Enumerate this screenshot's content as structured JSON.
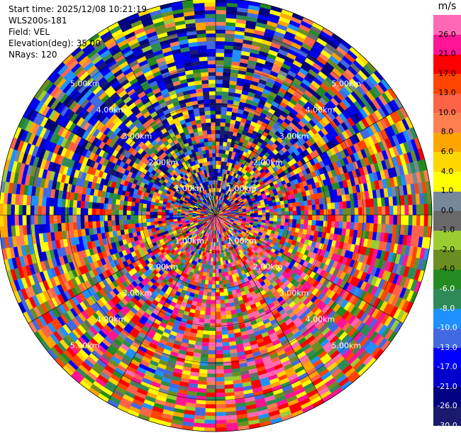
{
  "header": {
    "start_time": "Start time: 2025/12/08 10:21:19",
    "instrument": "WLS200s-181",
    "field": "Field: VEL",
    "elevation": "Elevation(deg): 35.00",
    "nrays": "NRays: 120"
  },
  "chart_data": {
    "type": "ppi",
    "title": "",
    "field": "VEL",
    "elevation_deg": 35.0,
    "n_rays": 120,
    "range_rings_km": [
      1.0,
      2.0,
      3.0,
      4.0,
      5.0
    ],
    "range_ring_labels": [
      "1.00km",
      "2.00km",
      "3.00km",
      "4.00km",
      "5.00km"
    ],
    "max_range_km": 5.85,
    "grid_lines": "radials every 30 degrees",
    "colorbar": {
      "unit": "m/s",
      "levels": [
        -30,
        -26,
        -21,
        -17,
        -13,
        -10,
        -8,
        -6,
        -4,
        -2,
        -1,
        0,
        1,
        4,
        6,
        8,
        10,
        13,
        17,
        21,
        26,
        30
      ],
      "tick_labels": [
        "26.0",
        "21.0",
        "17.0",
        "13.0",
        "10.0",
        "8.0",
        "6.0",
        "4.0",
        "1.0",
        "0.0",
        "-1.0",
        "-2.0",
        "-4.0",
        "-6.0",
        "-8.0",
        "-10.0",
        "-13.0",
        "-17.0",
        "-21.0",
        "-26.0",
        "-30.0"
      ],
      "label_text_colors": [
        "#000000",
        "#000000",
        "#000000",
        "#000000",
        "#000000",
        "#000000",
        "#000000",
        "#000000",
        "#000000",
        "#000000",
        "#000000",
        "#000000",
        "#000000",
        "#ffffff",
        "#ffffff",
        "#ffffff",
        "#ffffff",
        "#ffffff",
        "#ffffff",
        "#ffffff",
        "#ffffff"
      ],
      "colors": [
        "#191970",
        "#000080",
        "#0000cd",
        "#0000ff",
        "#4169e1",
        "#1e90ff",
        "#2e8b57",
        "#228b22",
        "#6b8e23",
        "#9acd32",
        "#696969",
        "#778899",
        "#ffff00",
        "#ffd700",
        "#ffa500",
        "#ff7f50",
        "#ff6347",
        "#ff4500",
        "#ff0000",
        "#ff1493",
        "#ff69b4"
      ]
    }
  }
}
